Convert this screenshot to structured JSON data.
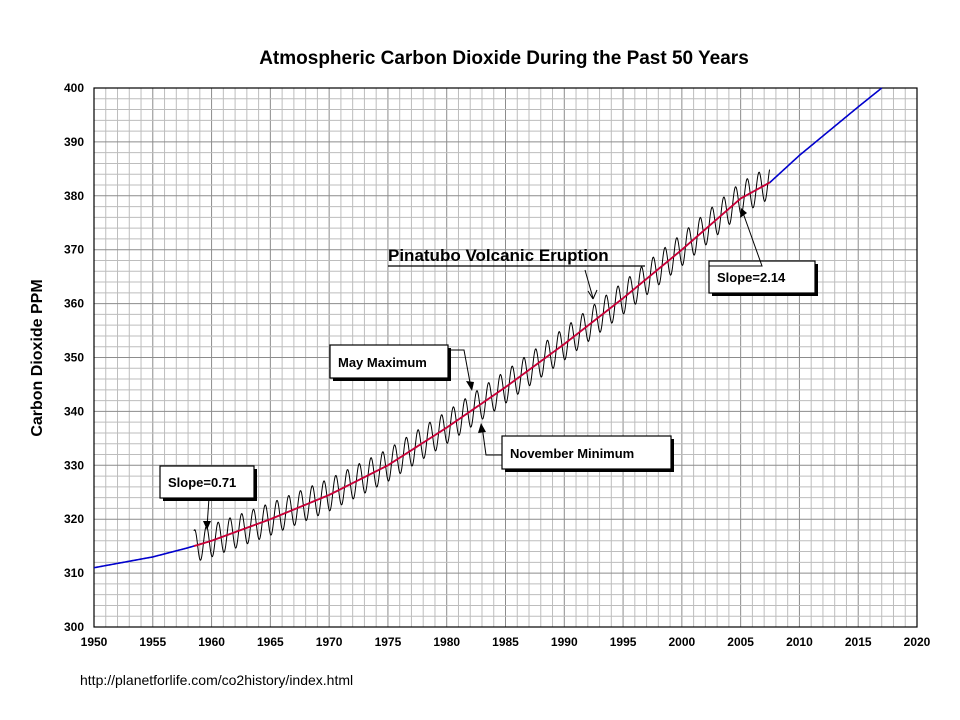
{
  "chart_data": {
    "type": "line",
    "title": "Atmospheric Carbon Dioxide During the Past 50 Years",
    "xlabel": "",
    "ylabel": "Carbon Dioxide PPM",
    "xlim": [
      1950,
      2020
    ],
    "ylim": [
      300,
      400
    ],
    "x_ticks": [
      "1950",
      "1955",
      "1960",
      "1965",
      "1970",
      "1975",
      "1980",
      "1985",
      "1990",
      "1995",
      "2000",
      "2005",
      "2010",
      "2015",
      "2020"
    ],
    "y_ticks": [
      "300",
      "310",
      "320",
      "330",
      "340",
      "350",
      "360",
      "370",
      "380",
      "390",
      "400"
    ],
    "grid": true,
    "series": [
      {
        "color": "#0000cc",
        "x": [
          1950,
          1955,
          1958,
          1960,
          1965,
          1970,
          1975,
          1980,
          1985,
          1990,
          1995,
          2000,
          2005,
          2007.5,
          2010,
          2015,
          2017
        ],
        "y": [
          311,
          313,
          314.7,
          316,
          320,
          324.5,
          330,
          337,
          344.5,
          352.5,
          361,
          370,
          379.5,
          382.5,
          387.5,
          396.5,
          400
        ]
      },
      {
        "color": "#cc0033",
        "x": [
          1958.5,
          1960,
          1965,
          1970,
          1975,
          1980,
          1985,
          1990,
          1995,
          2000,
          2005,
          2007.5
        ],
        "y": [
          315,
          316,
          320,
          324.5,
          330,
          337,
          344.5,
          352.5,
          361,
          370,
          379.5,
          382.5
        ]
      },
      {
        "color": "#000000",
        "x_start": 1958.5,
        "x_end": 2007.5,
        "seasonal_amplitude": 3,
        "note": "monthly readings oscillating about the trend; May maximum, November minimum"
      }
    ],
    "annotations": [
      {
        "text": "Pinatubo Volcanic Eruption",
        "x": 1993,
        "y": 360
      },
      {
        "text": "Slope=2.14",
        "x": 2005.5,
        "y": 378
      },
      {
        "text": "May Maximum",
        "x": 1982,
        "y": 344
      },
      {
        "text": "November Minimum",
        "x": 1982.5,
        "y": 338
      },
      {
        "text": "Slope=0.71",
        "x": 1960,
        "y": 314
      }
    ]
  },
  "source": "http://planetforlife.com/co2history/index.html"
}
